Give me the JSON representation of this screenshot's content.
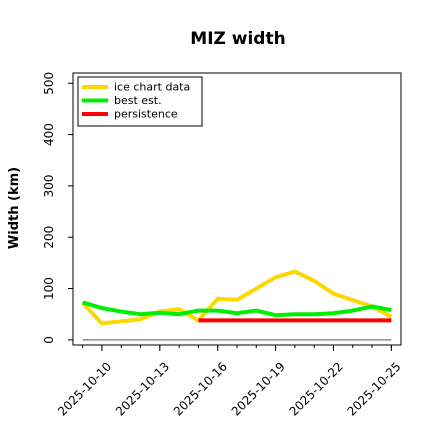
{
  "chart_data": {
    "type": "line",
    "title": "MIZ width",
    "xlabel": "",
    "ylabel": "Width (km)",
    "ylim": [
      -10,
      520
    ],
    "yticks": [
      0,
      100,
      200,
      300,
      400,
      500
    ],
    "xlim": [
      "2025-10-08T12",
      "2025-10-25T12"
    ],
    "xtick_labels": [
      "2025-10-10",
      "2025-10-13",
      "2025-10-16",
      "2025-10-19",
      "2025-10-22",
      "2025-10-25"
    ],
    "x_minor_ticks": [
      "2025-10-09",
      "2025-10-10",
      "2025-10-11",
      "2025-10-12",
      "2025-10-13",
      "2025-10-14",
      "2025-10-15",
      "2025-10-16",
      "2025-10-17",
      "2025-10-18",
      "2025-10-19",
      "2025-10-20",
      "2025-10-21",
      "2025-10-22",
      "2025-10-23",
      "2025-10-24",
      "2025-10-25"
    ],
    "grid": false,
    "legend_position": "upper-left",
    "series": [
      {
        "name": "ice chart data",
        "color": "#FFD700",
        "x": [
          "2025-10-09",
          "2025-10-10",
          "2025-10-12",
          "2025-10-13",
          "2025-10-14",
          "2025-10-15",
          "2025-10-16",
          "2025-10-17",
          "2025-10-18",
          "2025-10-19",
          "2025-10-20",
          "2025-10-21",
          "2025-10-22",
          "2025-10-24",
          "2025-10-25"
        ],
        "y": [
          72,
          32,
          40,
          55,
          60,
          38,
          80,
          78,
          100,
          122,
          133,
          115,
          90,
          65,
          45
        ]
      },
      {
        "name": "best est.",
        "color": "#00EE00",
        "x": [
          "2025-10-09",
          "2025-10-10",
          "2025-10-11",
          "2025-10-12",
          "2025-10-13",
          "2025-10-14",
          "2025-10-15",
          "2025-10-16",
          "2025-10-17",
          "2025-10-18",
          "2025-10-19",
          "2025-10-20",
          "2025-10-21",
          "2025-10-22",
          "2025-10-23",
          "2025-10-24",
          "2025-10-25"
        ],
        "y": [
          73,
          62,
          55,
          50,
          53,
          50,
          57,
          57,
          52,
          57,
          48,
          50,
          50,
          52,
          57,
          65,
          58
        ]
      },
      {
        "name": "persistence",
        "color": "#FF0000",
        "x": [
          "2025-10-15",
          "2025-10-25"
        ],
        "y": [
          38,
          38
        ]
      },
      {
        "color": "#777777",
        "x": [
          "2025-10-09",
          "2025-10-25"
        ],
        "y": [
          0,
          0
        ]
      }
    ]
  }
}
